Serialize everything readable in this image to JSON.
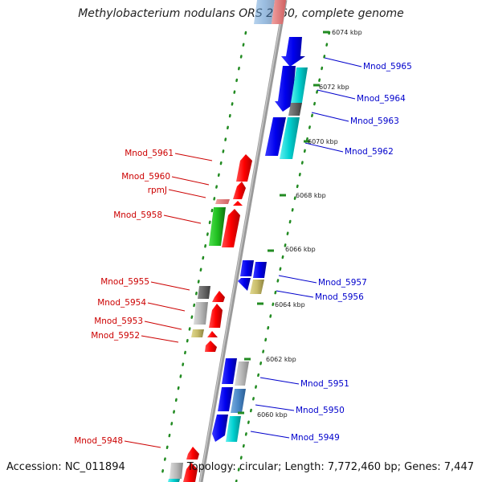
{
  "title": "Methylobacterium nodulans ORS 2060, complete genome",
  "footer": {
    "accession": "Accession: NC_011894",
    "info": "Topology: circular; Length: 7,772,460 bp; Genes: 7,447"
  },
  "colors": {
    "forward_label": "#cc0000",
    "reverse_label": "#0000cc",
    "backbone": "#999999",
    "dots": "#228b22"
  },
  "ticks": [
    "6074 kbp",
    "6072 kbp",
    "6070 kbp",
    "6068 kbp",
    "6066 kbp",
    "6064 kbp",
    "6062 kbp",
    "6060 kbp"
  ],
  "genes_left": [
    "Mnod_5961",
    "Mnod_5960",
    "rpmJ",
    "Mnod_5958",
    "Mnod_5955",
    "Mnod_5954",
    "Mnod_5953",
    "Mnod_5952",
    "Mnod_5948"
  ],
  "genes_right": [
    "Mnod_5965",
    "Mnod_5964",
    "Mnod_5963",
    "Mnod_5962",
    "Mnod_5957",
    "Mnod_5956",
    "Mnod_5951",
    "Mnod_5950",
    "Mnod_5949"
  ]
}
